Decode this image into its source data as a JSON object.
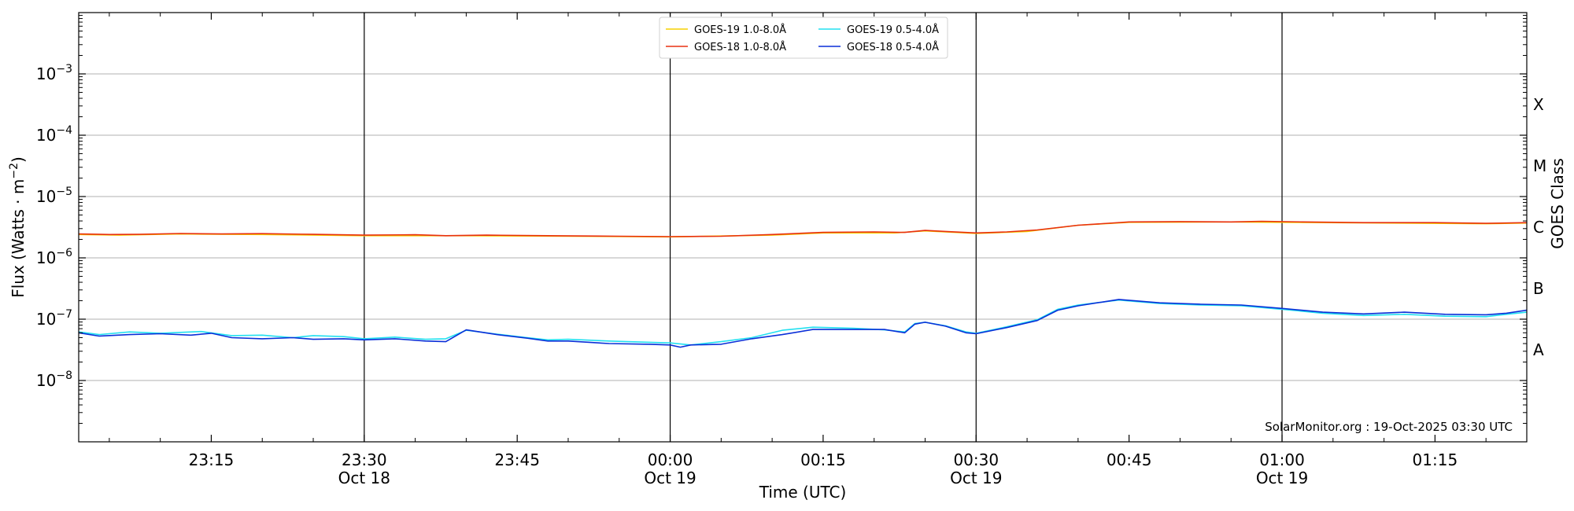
{
  "chart_data": {
    "type": "line",
    "xlabel": "Time (UTC)",
    "ylabel_main": "Flux (Watts · m",
    "ylabel_sup": "−2",
    "ylabel_close": ")",
    "y2label": "GOES Class",
    "y_scale": "log",
    "ylim": [
      1e-09,
      0.01
    ],
    "xlim": [
      "23:02",
      "01:24"
    ],
    "grid": "horizontal at decades 1e-8 to 1e-3",
    "legend_position": "top-center",
    "credit": "SolarMonitor.org : 19-Oct-2025 03:30 UTC",
    "y_ticks": [
      {
        "value": 1e-08,
        "base": "10",
        "exp": "−8"
      },
      {
        "value": 1e-07,
        "base": "10",
        "exp": "−7"
      },
      {
        "value": 1e-06,
        "base": "10",
        "exp": "−6"
      },
      {
        "value": 1e-05,
        "base": "10",
        "exp": "−5"
      },
      {
        "value": 0.0001,
        "base": "10",
        "exp": "−4"
      },
      {
        "value": 0.001,
        "base": "10",
        "exp": "−3"
      }
    ],
    "x_ticks": [
      {
        "time": "23:15",
        "label": "23:15",
        "sub": ""
      },
      {
        "time": "23:30",
        "label": "23:30",
        "sub": "Oct 18"
      },
      {
        "time": "23:45",
        "label": "23:45",
        "sub": ""
      },
      {
        "time": "00:00",
        "label": "00:00",
        "sub": "Oct 19"
      },
      {
        "time": "00:15",
        "label": "00:15",
        "sub": ""
      },
      {
        "time": "00:30",
        "label": "00:30",
        "sub": "Oct 19"
      },
      {
        "time": "00:45",
        "label": "00:45",
        "sub": ""
      },
      {
        "time": "01:00",
        "label": "01:00",
        "sub": "Oct 19"
      },
      {
        "time": "01:15",
        "label": "01:15",
        "sub": ""
      }
    ],
    "vlines": [
      "23:30",
      "00:00",
      "00:30",
      "01:00"
    ],
    "goes_classes": [
      {
        "label": "X",
        "value": 0.000316
      },
      {
        "label": "M",
        "value": 3.16e-05
      },
      {
        "label": "C",
        "value": 3.16e-06
      },
      {
        "label": "B",
        "value": 3.16e-07
      },
      {
        "label": "A",
        "value": 3.16e-08
      }
    ],
    "legend": [
      {
        "name": "GOES-19 1.0-8.0Å",
        "color": "#f5d000"
      },
      {
        "name": "GOES-18 1.0-8.0Å",
        "color": "#e83010"
      },
      {
        "name": "GOES-19 0.5-4.0Å",
        "color": "#22e0f0"
      },
      {
        "name": "GOES-18 0.5-4.0Å",
        "color": "#0a2fd8"
      }
    ],
    "series": [
      {
        "name": "GOES-19 1.0-8.0Å",
        "color": "#f5d000",
        "points": [
          [
            "23:02",
            2.4e-06
          ],
          [
            "23:06",
            2.35e-06
          ],
          [
            "23:12",
            2.45e-06
          ],
          [
            "23:20",
            2.4e-06
          ],
          [
            "23:30",
            2.3e-06
          ],
          [
            "23:40",
            2.3e-06
          ],
          [
            "23:50",
            2.25e-06
          ],
          [
            "00:00",
            2.2e-06
          ],
          [
            "00:10",
            2.35e-06
          ],
          [
            "00:15",
            2.55e-06
          ],
          [
            "00:22",
            2.55e-06
          ],
          [
            "00:25",
            2.75e-06
          ],
          [
            "00:30",
            2.5e-06
          ],
          [
            "00:35",
            2.7e-06
          ],
          [
            "00:40",
            3.4e-06
          ],
          [
            "00:45",
            3.8e-06
          ],
          [
            "00:55",
            3.85e-06
          ],
          [
            "01:00",
            3.8e-06
          ],
          [
            "01:10",
            3.7e-06
          ],
          [
            "01:20",
            3.6e-06
          ],
          [
            "01:24",
            3.7e-06
          ]
        ]
      },
      {
        "name": "GOES-18 1.0-8.0Å",
        "color": "#e83010",
        "points": [
          [
            "23:02",
            2.45e-06
          ],
          [
            "23:05",
            2.4e-06
          ],
          [
            "23:08",
            2.42e-06
          ],
          [
            "23:12",
            2.5e-06
          ],
          [
            "23:16",
            2.45e-06
          ],
          [
            "23:20",
            2.48e-06
          ],
          [
            "23:25",
            2.42e-06
          ],
          [
            "23:30",
            2.35e-06
          ],
          [
            "23:35",
            2.38e-06
          ],
          [
            "23:38",
            2.3e-06
          ],
          [
            "23:42",
            2.35e-06
          ],
          [
            "23:48",
            2.3e-06
          ],
          [
            "23:55",
            2.25e-06
          ],
          [
            "00:00",
            2.22e-06
          ],
          [
            "00:05",
            2.25e-06
          ],
          [
            "00:10",
            2.4e-06
          ],
          [
            "00:15",
            2.6e-06
          ],
          [
            "00:20",
            2.65e-06
          ],
          [
            "00:23",
            2.6e-06
          ],
          [
            "00:25",
            2.8e-06
          ],
          [
            "00:27",
            2.7e-06
          ],
          [
            "00:30",
            2.55e-06
          ],
          [
            "00:33",
            2.65e-06
          ],
          [
            "00:36",
            2.85e-06
          ],
          [
            "00:40",
            3.4e-06
          ],
          [
            "00:45",
            3.85e-06
          ],
          [
            "00:50",
            3.9e-06
          ],
          [
            "00:55",
            3.85e-06
          ],
          [
            "00:58",
            3.95e-06
          ],
          [
            "01:02",
            3.85e-06
          ],
          [
            "01:08",
            3.75e-06
          ],
          [
            "01:15",
            3.75e-06
          ],
          [
            "01:20",
            3.65e-06
          ],
          [
            "01:24",
            3.75e-06
          ]
        ]
      },
      {
        "name": "GOES-19 0.5-4.0Å",
        "color": "#22e0f0",
        "points": [
          [
            "23:02",
            6.2e-08
          ],
          [
            "23:04",
            5.6e-08
          ],
          [
            "23:07",
            6.2e-08
          ],
          [
            "23:10",
            5.9e-08
          ],
          [
            "23:14",
            6.3e-08
          ],
          [
            "23:17",
            5.4e-08
          ],
          [
            "23:20",
            5.5e-08
          ],
          [
            "23:23",
            5e-08
          ],
          [
            "23:25",
            5.4e-08
          ],
          [
            "23:28",
            5.2e-08
          ],
          [
            "23:30",
            4.8e-08
          ],
          [
            "23:33",
            5.1e-08
          ],
          [
            "23:36",
            4.7e-08
          ],
          [
            "23:38",
            4.8e-08
          ],
          [
            "23:40",
            6.6e-08
          ],
          [
            "23:43",
            5.7e-08
          ],
          [
            "23:46",
            5e-08
          ],
          [
            "23:48",
            4.6e-08
          ],
          [
            "23:50",
            4.7e-08
          ],
          [
            "23:54",
            4.4e-08
          ],
          [
            "23:58",
            4.2e-08
          ],
          [
            "00:00",
            4.1e-08
          ],
          [
            "00:02",
            3.8e-08
          ],
          [
            "00:05",
            4.3e-08
          ],
          [
            "00:08",
            5e-08
          ],
          [
            "00:11",
            6.6e-08
          ],
          [
            "00:14",
            7.4e-08
          ],
          [
            "00:18",
            7.1e-08
          ],
          [
            "00:21",
            6.7e-08
          ],
          [
            "00:23",
            6.2e-08
          ],
          [
            "00:24",
            8.5e-08
          ],
          [
            "00:25",
            8.9e-08
          ],
          [
            "00:27",
            7.8e-08
          ],
          [
            "00:29",
            6.2e-08
          ],
          [
            "00:30",
            5.9e-08
          ],
          [
            "00:33",
            7.5e-08
          ],
          [
            "00:36",
            9.8e-08
          ],
          [
            "00:38",
            1.45e-07
          ],
          [
            "00:40",
            1.7e-07
          ],
          [
            "00:44",
            2.05e-07
          ],
          [
            "00:48",
            1.8e-07
          ],
          [
            "00:52",
            1.7e-07
          ],
          [
            "00:56",
            1.65e-07
          ],
          [
            "01:00",
            1.45e-07
          ],
          [
            "01:04",
            1.25e-07
          ],
          [
            "01:08",
            1.15e-07
          ],
          [
            "01:12",
            1.2e-07
          ],
          [
            "01:16",
            1.12e-07
          ],
          [
            "01:20",
            1.1e-07
          ],
          [
            "01:22",
            1.2e-07
          ],
          [
            "01:24",
            1.3e-07
          ]
        ]
      },
      {
        "name": "GOES-18 0.5-4.0Å",
        "color": "#0a2fd8",
        "points": [
          [
            "23:02",
            6e-08
          ],
          [
            "23:04",
            5.3e-08
          ],
          [
            "23:07",
            5.6e-08
          ],
          [
            "23:10",
            5.8e-08
          ],
          [
            "23:13",
            5.5e-08
          ],
          [
            "23:15",
            5.9e-08
          ],
          [
            "23:17",
            5e-08
          ],
          [
            "23:20",
            4.8e-08
          ],
          [
            "23:23",
            5e-08
          ],
          [
            "23:25",
            4.7e-08
          ],
          [
            "23:28",
            4.8e-08
          ],
          [
            "23:30",
            4.6e-08
          ],
          [
            "23:33",
            4.8e-08
          ],
          [
            "23:36",
            4.4e-08
          ],
          [
            "23:38",
            4.3e-08
          ],
          [
            "23:40",
            6.7e-08
          ],
          [
            "23:43",
            5.6e-08
          ],
          [
            "23:46",
            4.9e-08
          ],
          [
            "23:48",
            4.4e-08
          ],
          [
            "23:50",
            4.4e-08
          ],
          [
            "23:54",
            4e-08
          ],
          [
            "23:58",
            3.9e-08
          ],
          [
            "00:00",
            3.8e-08
          ],
          [
            "00:01",
            3.5e-08
          ],
          [
            "00:02",
            3.8e-08
          ],
          [
            "00:05",
            3.9e-08
          ],
          [
            "00:08",
            4.8e-08
          ],
          [
            "00:11",
            5.6e-08
          ],
          [
            "00:14",
            6.8e-08
          ],
          [
            "00:18",
            6.8e-08
          ],
          [
            "00:21",
            6.8e-08
          ],
          [
            "00:23",
            6e-08
          ],
          [
            "00:24",
            8.3e-08
          ],
          [
            "00:25",
            8.9e-08
          ],
          [
            "00:27",
            7.7e-08
          ],
          [
            "00:29",
            6e-08
          ],
          [
            "00:30",
            5.8e-08
          ],
          [
            "00:33",
            7.3e-08
          ],
          [
            "00:36",
            9.5e-08
          ],
          [
            "00:38",
            1.4e-07
          ],
          [
            "00:40",
            1.65e-07
          ],
          [
            "00:44",
            2.1e-07
          ],
          [
            "00:48",
            1.85e-07
          ],
          [
            "00:52",
            1.75e-07
          ],
          [
            "00:56",
            1.7e-07
          ],
          [
            "01:00",
            1.5e-07
          ],
          [
            "01:04",
            1.3e-07
          ],
          [
            "01:08",
            1.22e-07
          ],
          [
            "01:12",
            1.3e-07
          ],
          [
            "01:16",
            1.2e-07
          ],
          [
            "01:20",
            1.18e-07
          ],
          [
            "01:22",
            1.25e-07
          ],
          [
            "01:24",
            1.4e-07
          ]
        ]
      }
    ]
  }
}
